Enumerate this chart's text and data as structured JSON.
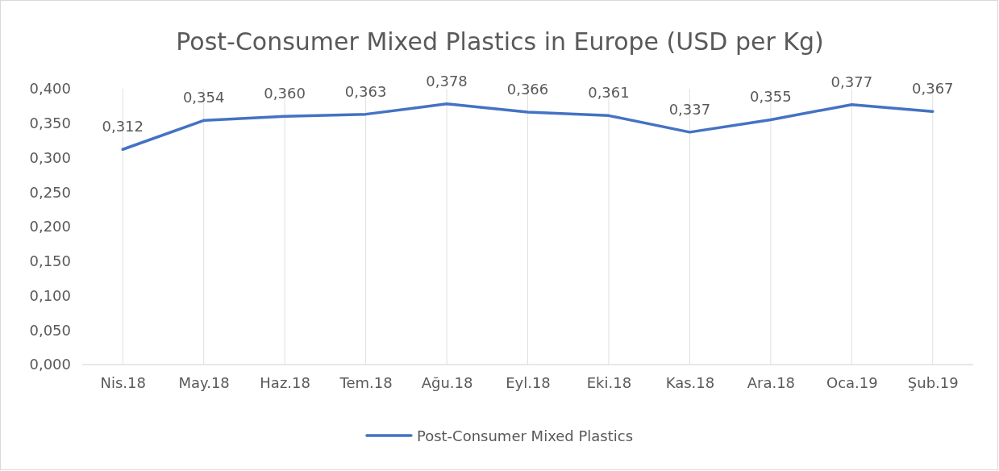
{
  "chart_data": {
    "type": "line",
    "title": "Post-Consumer Mixed Plastics in Europe (USD per Kg)",
    "categories": [
      "Nis.18",
      "May.18",
      "Haz.18",
      "Tem.18",
      "Ağu.18",
      "Eyl.18",
      "Eki.18",
      "Kas.18",
      "Ara.18",
      "Oca.19",
      "Şub.19"
    ],
    "series": [
      {
        "name": "Post-Consumer Mixed Plastics",
        "color": "#4472c4",
        "values": [
          0.312,
          0.354,
          0.36,
          0.363,
          0.378,
          0.366,
          0.361,
          0.337,
          0.355,
          0.377,
          0.367
        ],
        "value_labels": [
          "0,312",
          "0,354",
          "0,360",
          "0,363",
          "0,378",
          "0,366",
          "0,361",
          "0,337",
          "0,355",
          "0,377",
          "0,367"
        ]
      }
    ],
    "ylim": [
      0,
      0.4
    ],
    "yticks": [
      {
        "value": 0,
        "label": "0,000"
      },
      {
        "value": 0.05,
        "label": "0,050"
      },
      {
        "value": 0.1,
        "label": "0,100"
      },
      {
        "value": 0.15,
        "label": "0,150"
      },
      {
        "value": 0.2,
        "label": "0,200"
      },
      {
        "value": 0.25,
        "label": "0,250"
      },
      {
        "value": 0.3,
        "label": "0,300"
      },
      {
        "value": 0.35,
        "label": "0,350"
      },
      {
        "value": 0.4,
        "label": "0,400"
      }
    ],
    "grid": "x",
    "legend": "bottom",
    "marker": "none",
    "line_style": "solid"
  }
}
